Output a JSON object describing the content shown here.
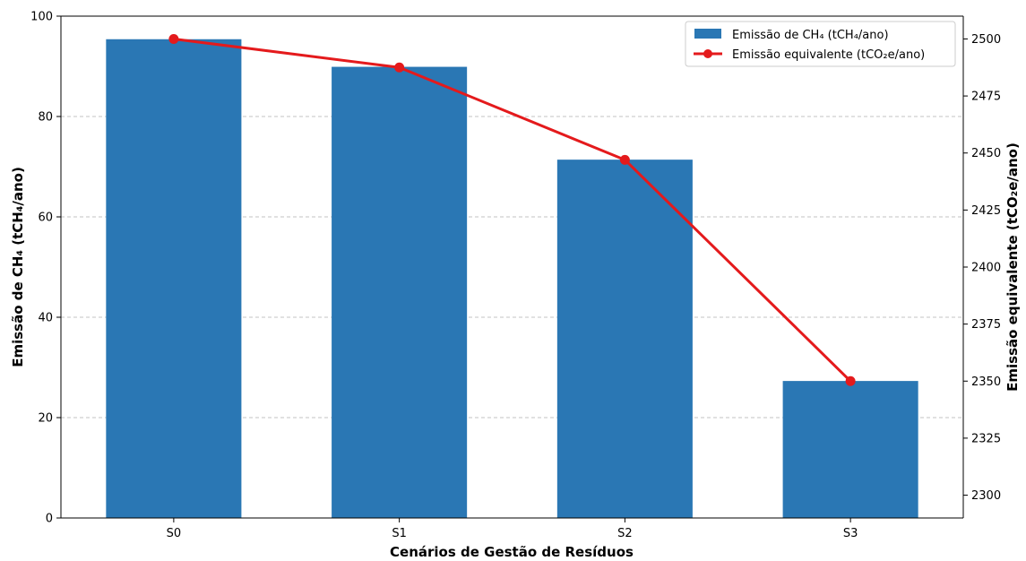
{
  "chart_data": {
    "type": "bar",
    "categories": [
      "S0",
      "S1",
      "S2",
      "S3"
    ],
    "xlabel": "Cenários de Gestão de Resíduos",
    "ylabel": "Emissão de CH₄ (tCH₄/ano)",
    "y2label": "Emissão equivalente (tCO₂e/ano)",
    "ylim": [
      0,
      100
    ],
    "y2lim": [
      2290,
      2510
    ],
    "yticks": [
      0,
      20,
      40,
      60,
      80,
      100
    ],
    "y2ticks": [
      2300,
      2325,
      2350,
      2375,
      2400,
      2425,
      2450,
      2475,
      2500
    ],
    "grid": "horizontal dashed",
    "legend_position": "top-right",
    "series": [
      {
        "name": "Emissão de CH₄ (tCH₄/ano)",
        "kind": "bar",
        "axis": "left",
        "color": "#2a77b4",
        "values": [
          95.4,
          89.9,
          71.4,
          27.3
        ]
      },
      {
        "name": "Emissão equivalente (tCO₂e/ano)",
        "kind": "line",
        "axis": "right",
        "color": "#e41a1c",
        "values": [
          2500,
          2487.5,
          2447,
          2350
        ]
      }
    ]
  }
}
